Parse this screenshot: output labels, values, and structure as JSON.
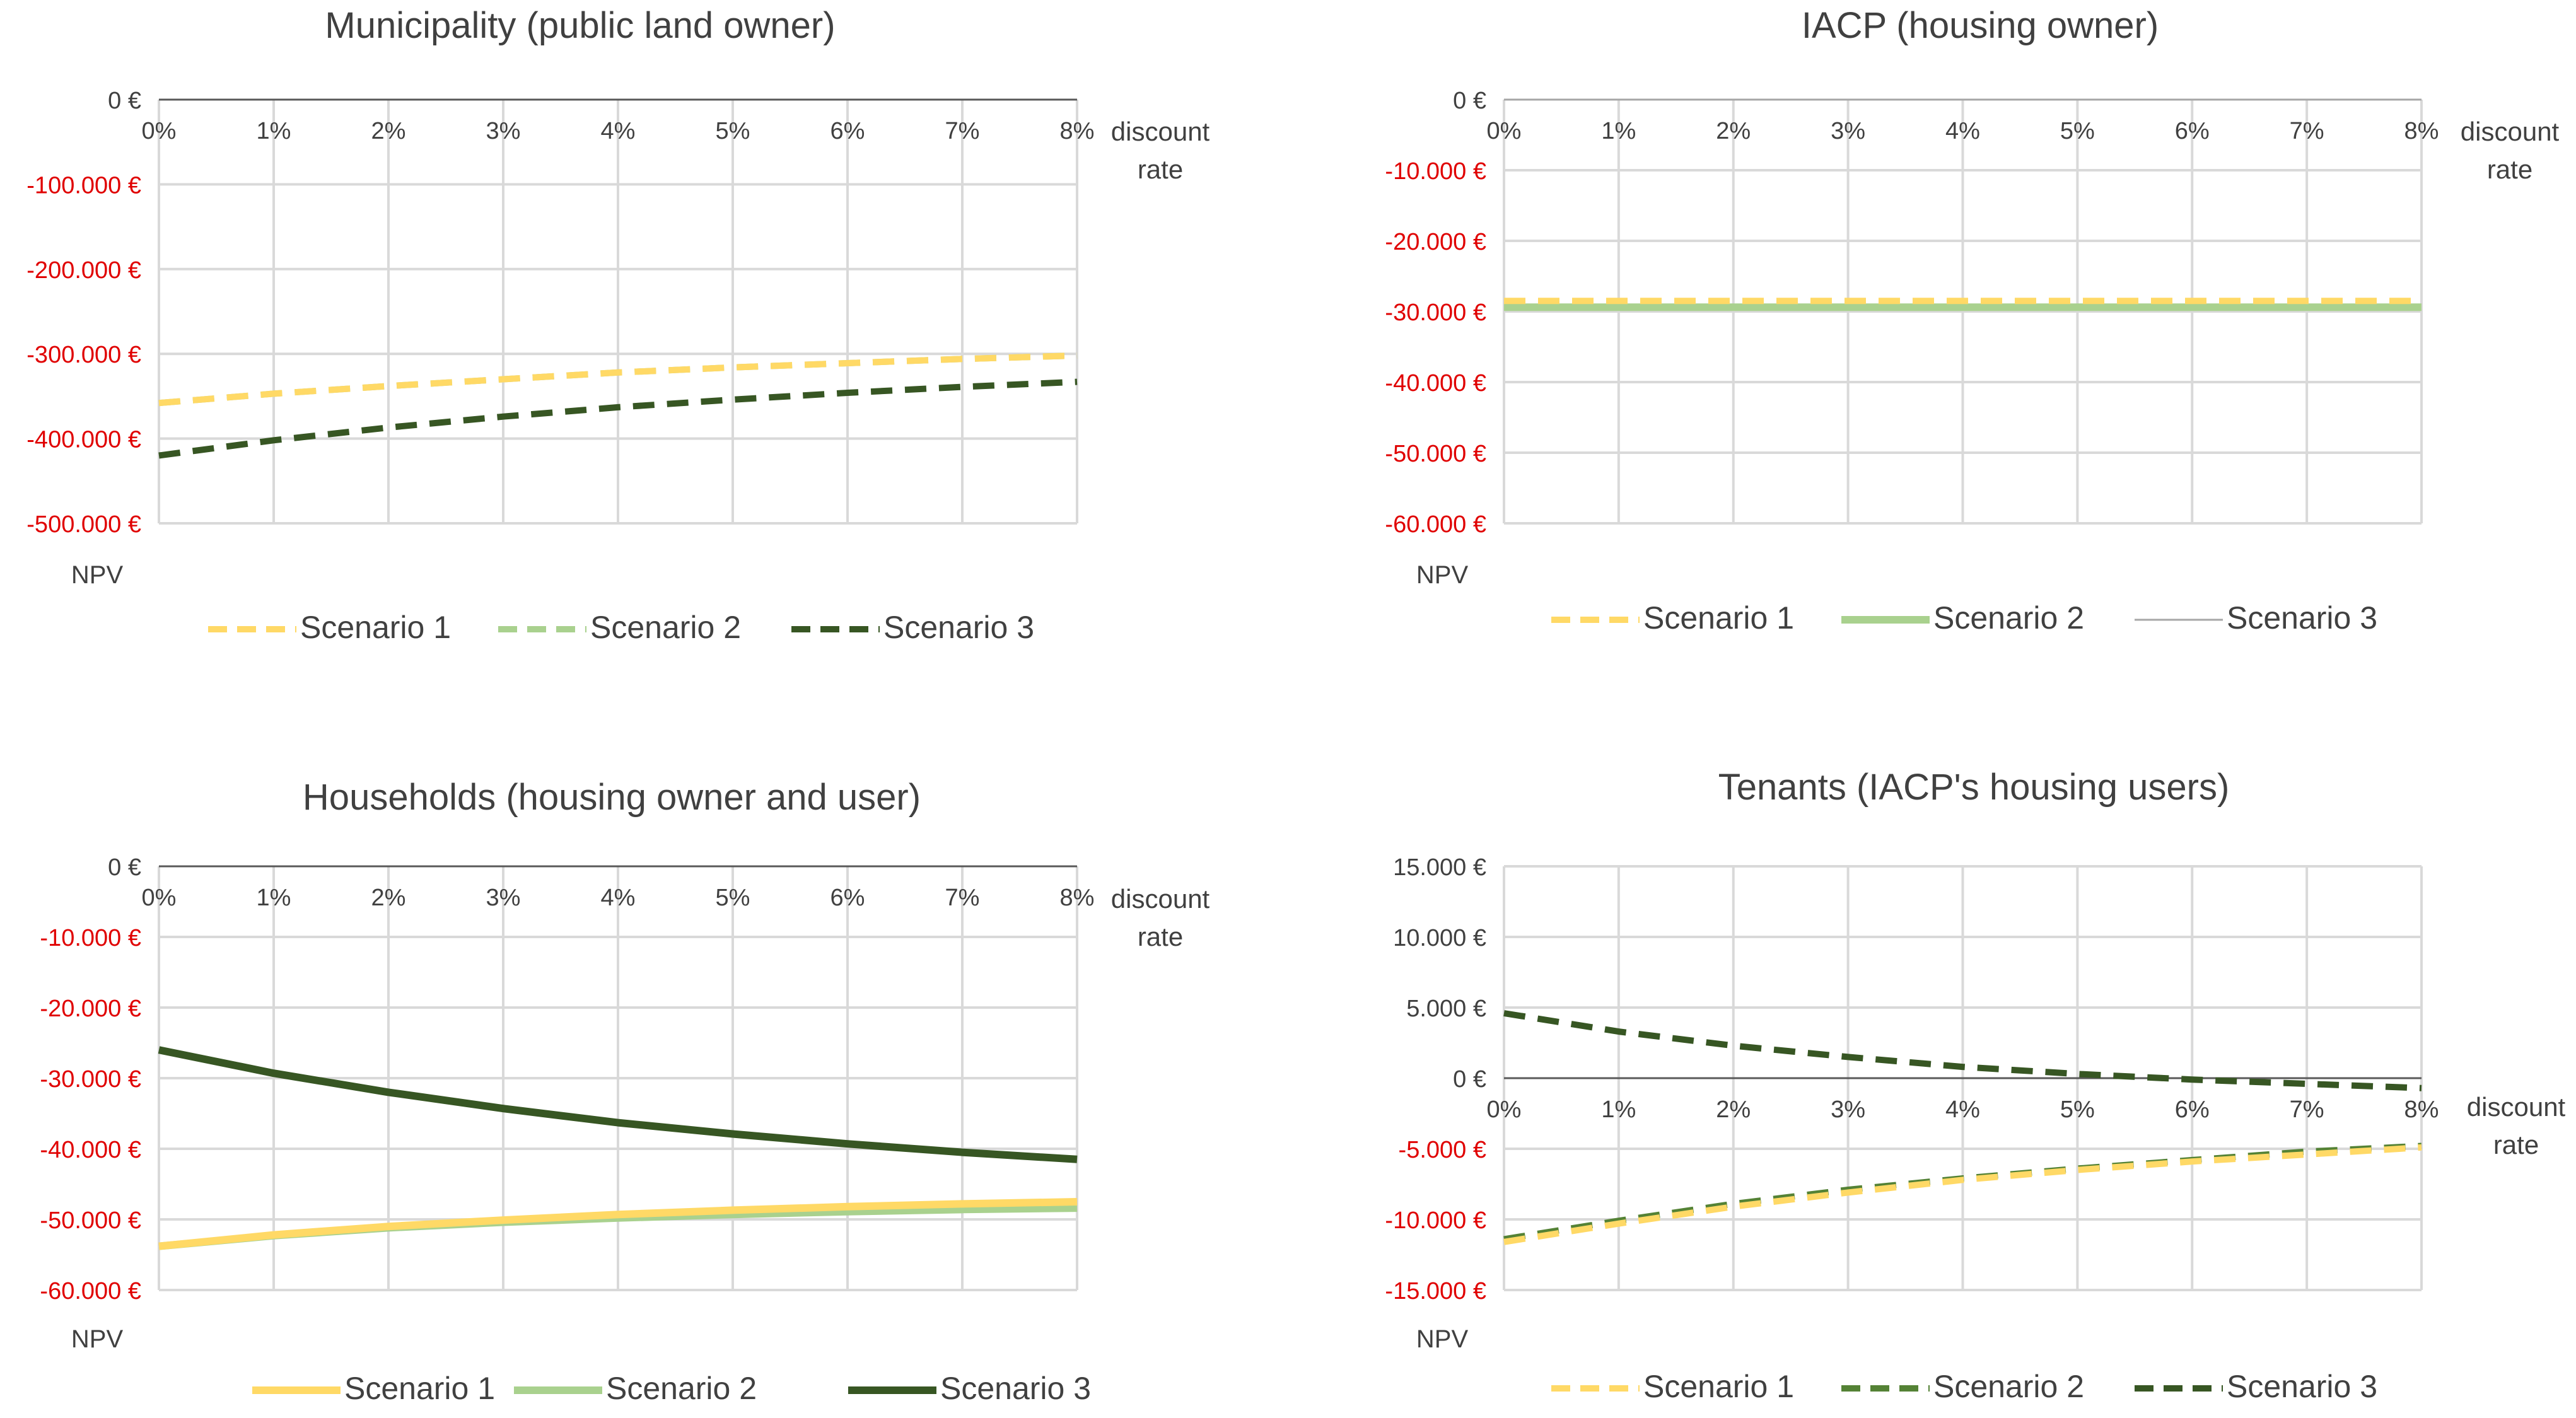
{
  "colors": {
    "scenario1": "#FFD966",
    "scenario2_light": "#A9D18E",
    "scenario2_mid": "#548235",
    "scenario3": "#375623",
    "negative_tick": "#E00000",
    "text": "#404040",
    "grid": "#D9D9D9"
  },
  "chart_data": [
    {
      "type": "line",
      "title": "Municipality (public land owner)",
      "xlabel": "discount rate",
      "xlabel_lines": [
        "discount",
        "rate"
      ],
      "ylabel": "NPV",
      "categories": [
        "0%",
        "1%",
        "2%",
        "3%",
        "4%",
        "5%",
        "6%",
        "7%",
        "8%"
      ],
      "ylim": [
        -500000,
        0
      ],
      "yticks": [
        0,
        -100000,
        -200000,
        -300000,
        -400000,
        -500000
      ],
      "ytick_labels": [
        "0 €",
        "-100.000 €",
        "-200.000 €",
        "-300.000 €",
        "-400.000 €",
        "-500.000 €"
      ],
      "series": [
        {
          "name": "Scenario 1",
          "color": "#FFD966",
          "dash": "dashed",
          "values": [
            -358000,
            -347000,
            -338000,
            -330000,
            -322000,
            -316000,
            -311000,
            -306000,
            -302000
          ]
        },
        {
          "name": "Scenario 2",
          "color": "#A9D18E",
          "dash": "dashed",
          "values": [
            -358000,
            -347000,
            -338000,
            -330000,
            -322000,
            -316000,
            -311000,
            -306000,
            -302000
          ]
        },
        {
          "name": "Scenario 3",
          "color": "#375623",
          "dash": "dashed",
          "values": [
            -420000,
            -402000,
            -387000,
            -374000,
            -363000,
            -354000,
            -346000,
            -339000,
            -333000
          ]
        }
      ]
    },
    {
      "type": "line",
      "title": "IACP (housing owner)",
      "xlabel": "discount rate",
      "xlabel_lines": [
        "discount",
        "rate"
      ],
      "ylabel": "NPV",
      "categories": [
        "0%",
        "1%",
        "2%",
        "3%",
        "4%",
        "5%",
        "6%",
        "7%",
        "8%"
      ],
      "ylim": [
        -60000,
        0
      ],
      "yticks": [
        0,
        -10000,
        -20000,
        -30000,
        -40000,
        -50000,
        -60000
      ],
      "ytick_labels": [
        "0 €",
        "-10.000 €",
        "-20.000 €",
        "-30.000 €",
        "-40.000 €",
        "-50.000 €",
        "-60.000 €"
      ],
      "series": [
        {
          "name": "Scenario 1",
          "color": "#FFD966",
          "dash": "dashed",
          "values": [
            -28500,
            -28500,
            -28500,
            -28500,
            -28500,
            -28500,
            -28500,
            -28500,
            -28500
          ]
        },
        {
          "name": "Scenario 2",
          "color": "#A9D18E",
          "dash": "solid",
          "values": [
            -29400,
            -29400,
            -29400,
            -29400,
            -29400,
            -29400,
            -29400,
            -29400,
            -29400
          ]
        },
        {
          "name": "Scenario 3",
          "color": "#A6A6A6",
          "dash": "thin",
          "values": [
            0,
            0,
            0,
            0,
            0,
            0,
            0,
            0,
            0
          ]
        }
      ]
    },
    {
      "type": "line",
      "title": "Households (housing owner and user)",
      "xlabel": "discount rate",
      "xlabel_lines": [
        "discount",
        "rate"
      ],
      "ylabel": "NPV",
      "categories": [
        "0%",
        "1%",
        "2%",
        "3%",
        "4%",
        "5%",
        "6%",
        "7%",
        "8%"
      ],
      "ylim": [
        -60000,
        0
      ],
      "yticks": [
        0,
        -10000,
        -20000,
        -30000,
        -40000,
        -50000,
        -60000
      ],
      "ytick_labels": [
        "0 €",
        "-10.000 €",
        "-20.000 €",
        "-30.000 €",
        "-40.000 €",
        "-50.000 €",
        "-60.000 €"
      ],
      "series": [
        {
          "name": "Scenario 1",
          "color": "#FFD966",
          "dash": "solid",
          "values": [
            -53800,
            -52200,
            -51000,
            -50100,
            -49300,
            -48700,
            -48200,
            -47800,
            -47500
          ]
        },
        {
          "name": "Scenario 2",
          "color": "#A9D18E",
          "dash": "solid",
          "values": [
            -53800,
            -52300,
            -51200,
            -50400,
            -49800,
            -49300,
            -48900,
            -48600,
            -48400
          ]
        },
        {
          "name": "Scenario 3",
          "color": "#375623",
          "dash": "solid",
          "values": [
            -26000,
            -29300,
            -32000,
            -34300,
            -36300,
            -37900,
            -39300,
            -40500,
            -41500
          ]
        }
      ]
    },
    {
      "type": "line",
      "title": "Tenants (IACP's housing users)",
      "xlabel": "discount rate",
      "xlabel_lines": [
        "discount",
        "rate"
      ],
      "ylabel": "NPV",
      "categories": [
        "0%",
        "1%",
        "2%",
        "3%",
        "4%",
        "5%",
        "6%",
        "7%",
        "8%"
      ],
      "ylim": [
        -15000,
        15000
      ],
      "yticks": [
        15000,
        10000,
        5000,
        0,
        -5000,
        -10000,
        -15000
      ],
      "ytick_labels": [
        "15.000 €",
        "10.000 €",
        "5.000 €",
        "0 €",
        "-5.000 €",
        "-10.000 €",
        "-15.000 €"
      ],
      "series": [
        {
          "name": "Scenario 1",
          "color": "#FFD966",
          "dash": "dashed",
          "values": [
            -11600,
            -10300,
            -9100,
            -8100,
            -7200,
            -6500,
            -5900,
            -5400,
            -4900
          ]
        },
        {
          "name": "Scenario 2",
          "color": "#548235",
          "dash": "dashed",
          "values": [
            -11400,
            -10100,
            -8900,
            -7900,
            -7100,
            -6400,
            -5800,
            -5200,
            -4800
          ]
        },
        {
          "name": "Scenario 3",
          "color": "#375623",
          "dash": "dashed",
          "values": [
            4600,
            3300,
            2300,
            1500,
            800,
            300,
            -100,
            -400,
            -700
          ]
        }
      ]
    }
  ]
}
